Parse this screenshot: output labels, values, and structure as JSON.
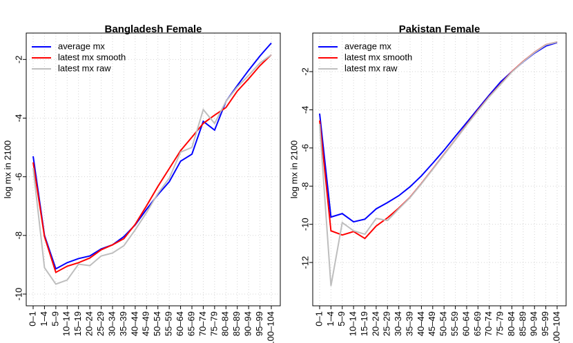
{
  "chart_data": [
    {
      "type": "line",
      "title": "Bangladesh Female",
      "y_label": "log mx in 2100",
      "categories": [
        "0–1",
        "1–4",
        "5–9",
        "10–14",
        "15–19",
        "20–24",
        "25–29",
        "30–34",
        "35–39",
        "40–44",
        "45–49",
        "50–54",
        "55–59",
        "60–64",
        "65–69",
        "70–74",
        "75–79",
        "80–84",
        "85–89",
        "90–94",
        "95–99",
        "100–104"
      ],
      "series": [
        {
          "name": "average mx",
          "color": "#0000ff",
          "values": [
            -5.3,
            -8.0,
            -9.14,
            -8.93,
            -8.79,
            -8.7,
            -8.46,
            -8.32,
            -8.04,
            -7.64,
            -7.11,
            -6.61,
            -6.17,
            -5.47,
            -5.23,
            -4.11,
            -4.41,
            -3.43,
            -2.89,
            -2.37,
            -1.88,
            -1.44
          ]
        },
        {
          "name": "latest mx smooth",
          "color": "#ff0000",
          "values": [
            -5.51,
            -8.04,
            -9.26,
            -9.05,
            -8.93,
            -8.77,
            -8.49,
            -8.32,
            -8.11,
            -7.62,
            -6.99,
            -6.33,
            -5.72,
            -5.11,
            -4.65,
            -4.18,
            -3.9,
            -3.64,
            -3.08,
            -2.66,
            -2.21,
            -1.84
          ]
        },
        {
          "name": "latest mx raw",
          "color": "#bebebe",
          "values": [
            -5.7,
            -9.1,
            -9.66,
            -9.52,
            -8.98,
            -9.03,
            -8.7,
            -8.6,
            -8.35,
            -7.81,
            -7.22,
            -6.57,
            -6.05,
            -5.16,
            -5.0,
            -3.71,
            -4.18,
            -3.43,
            -2.94,
            -2.54,
            -2.12,
            -1.84
          ]
        }
      ],
      "ylim": [
        -10.4,
        -1.1
      ],
      "yticks": [
        -10,
        -8,
        -6,
        -4,
        -2
      ],
      "grid": true,
      "legend": "top-left"
    },
    {
      "type": "line",
      "title": "Pakistan Female",
      "y_label": "log mx in 2100",
      "categories": [
        "0–1",
        "1–4",
        "5–9",
        "10–14",
        "15–19",
        "20–24",
        "25–29",
        "30–34",
        "35–39",
        "40–44",
        "45–49",
        "50–54",
        "55–59",
        "60–64",
        "65–69",
        "70–74",
        "75–79",
        "80–84",
        "85–89",
        "90–94",
        "95–99",
        "100–104"
      ],
      "series": [
        {
          "name": "average mx",
          "color": "#0000ff",
          "values": [
            -4.2,
            -9.62,
            -9.44,
            -9.87,
            -9.73,
            -9.19,
            -8.86,
            -8.5,
            -8.03,
            -7.46,
            -6.8,
            -6.12,
            -5.39,
            -4.67,
            -3.95,
            -3.23,
            -2.54,
            -2.0,
            -1.49,
            -1.03,
            -0.66,
            -0.48
          ]
        },
        {
          "name": "latest mx smooth",
          "color": "#ff0000",
          "values": [
            -4.56,
            -10.34,
            -10.56,
            -10.38,
            -10.74,
            -10.09,
            -9.66,
            -9.15,
            -8.58,
            -7.86,
            -7.1,
            -6.33,
            -5.57,
            -4.78,
            -4.02,
            -3.3,
            -2.65,
            -2.0,
            -1.46,
            -0.99,
            -0.59,
            -0.45
          ]
        },
        {
          "name": "latest mx raw",
          "color": "#bebebe",
          "values": [
            -4.74,
            -13.23,
            -9.91,
            -10.34,
            -10.52,
            -9.69,
            -9.8,
            -9.19,
            -8.6,
            -7.88,
            -7.12,
            -6.35,
            -5.58,
            -4.8,
            -4.05,
            -3.32,
            -2.67,
            -2.02,
            -1.48,
            -1.0,
            -0.6,
            -0.45
          ]
        }
      ],
      "ylim": [
        -14.27,
        0.02
      ],
      "yticks": [
        -12,
        -10,
        -8,
        -6,
        -4,
        -2
      ],
      "grid": true,
      "legend": "top-left"
    }
  ]
}
